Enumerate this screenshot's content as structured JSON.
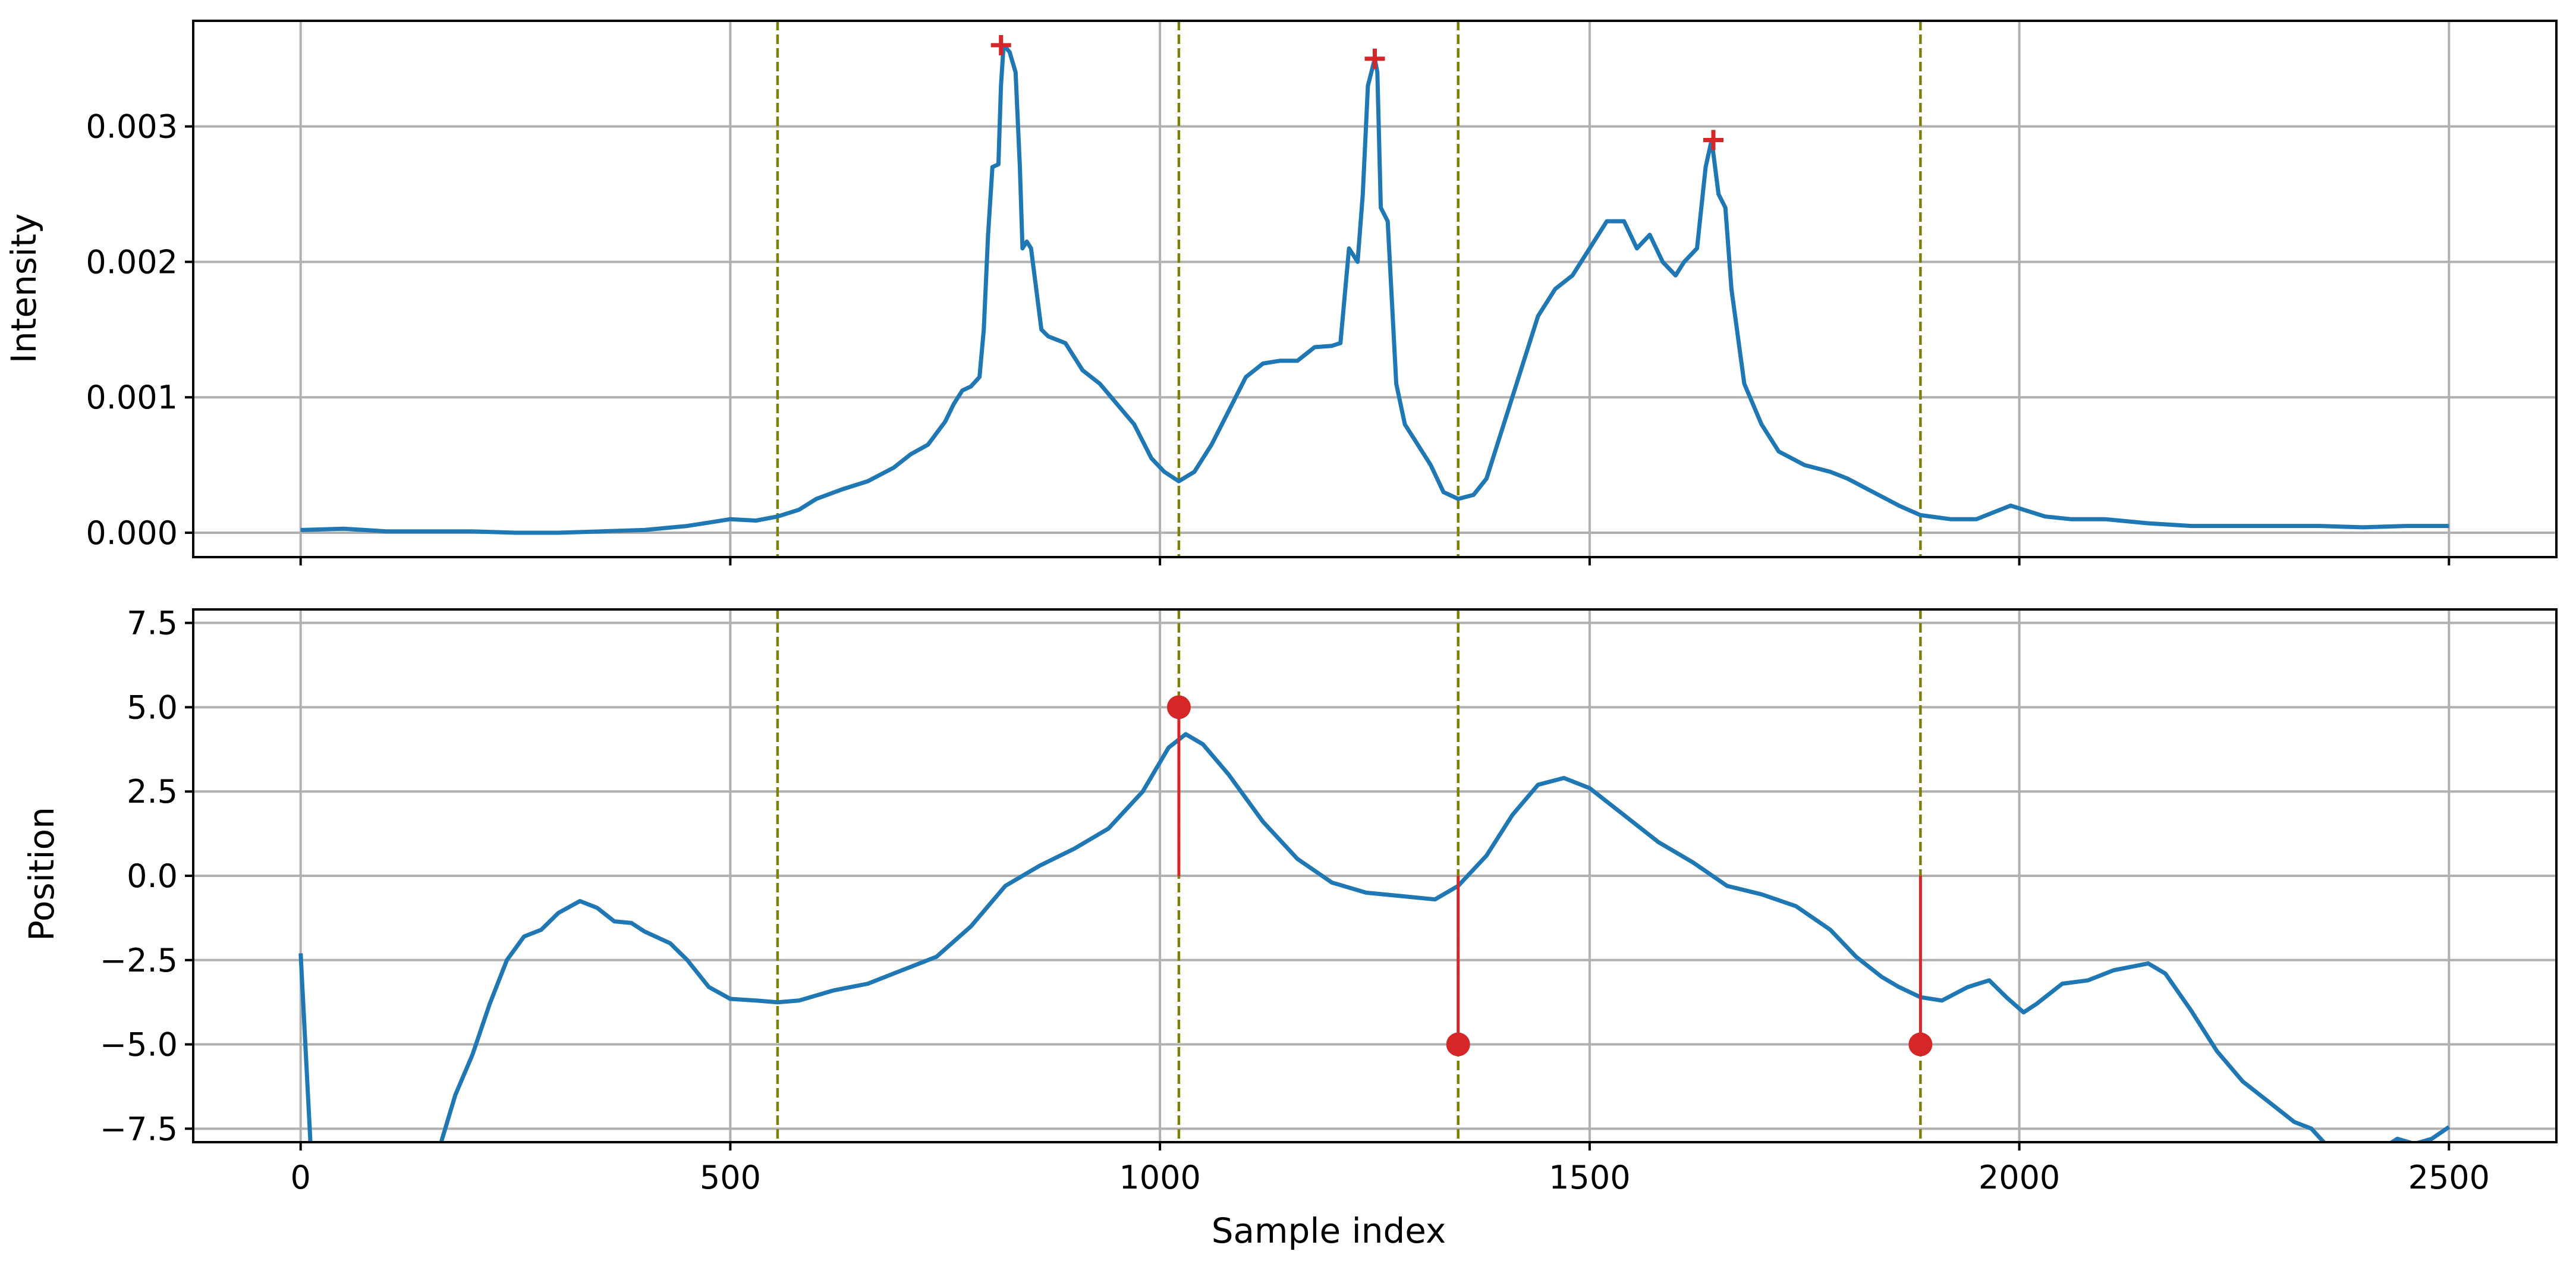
{
  "colors": {
    "series": "#1f77b4",
    "marker": "#d62728",
    "vline": "#808000",
    "grid": "#b0b0b0",
    "axes": "#000000"
  },
  "chart_data": [
    {
      "type": "line",
      "panel": "top",
      "ylabel": "Intensity",
      "xlabel": "",
      "xlim": [
        -125,
        2625
      ],
      "ylim": [
        -0.00018,
        0.00378
      ],
      "x_ticks": [
        0,
        500,
        1000,
        1500,
        2000,
        2500
      ],
      "x_tick_labels_visible": false,
      "y_ticks": [
        0.0,
        0.001,
        0.002,
        0.003
      ],
      "y_tick_labels": [
        "0.000",
        "0.001",
        "0.002",
        "0.003"
      ],
      "grid": true,
      "vertical_lines": [
        555,
        1022,
        1347,
        1885
      ],
      "series": [
        {
          "points": [
            [
              0,
              2e-05
            ],
            [
              50,
              3e-05
            ],
            [
              100,
              1e-05
            ],
            [
              150,
              1e-05
            ],
            [
              200,
              1e-05
            ],
            [
              250,
              0.0
            ],
            [
              300,
              0.0
            ],
            [
              350,
              1e-05
            ],
            [
              400,
              2e-05
            ],
            [
              450,
              5e-05
            ],
            [
              480,
              8e-05
            ],
            [
              500,
              0.0001
            ],
            [
              530,
              9e-05
            ],
            [
              555,
              0.00012
            ],
            [
              580,
              0.00017
            ],
            [
              600,
              0.00025
            ],
            [
              630,
              0.00032
            ],
            [
              660,
              0.00038
            ],
            [
              690,
              0.00048
            ],
            [
              710,
              0.00058
            ],
            [
              730,
              0.00065
            ],
            [
              750,
              0.00082
            ],
            [
              760,
              0.00095
            ],
            [
              770,
              0.00105
            ],
            [
              780,
              0.00108
            ],
            [
              790,
              0.00115
            ],
            [
              795,
              0.0015
            ],
            [
              800,
              0.0022
            ],
            [
              805,
              0.0027
            ],
            [
              812,
              0.00272
            ],
            [
              815,
              0.0033
            ],
            [
              818,
              0.0036
            ],
            [
              825,
              0.00355
            ],
            [
              832,
              0.0034
            ],
            [
              837,
              0.0027
            ],
            [
              840,
              0.0021
            ],
            [
              845,
              0.00215
            ],
            [
              850,
              0.0021
            ],
            [
              858,
              0.0017
            ],
            [
              862,
              0.0015
            ],
            [
              870,
              0.00145
            ],
            [
              890,
              0.0014
            ],
            [
              910,
              0.0012
            ],
            [
              930,
              0.0011
            ],
            [
              950,
              0.00095
            ],
            [
              970,
              0.0008
            ],
            [
              990,
              0.00055
            ],
            [
              1005,
              0.00045
            ],
            [
              1022,
              0.00038
            ],
            [
              1040,
              0.00045
            ],
            [
              1060,
              0.00065
            ],
            [
              1080,
              0.0009
            ],
            [
              1100,
              0.00115
            ],
            [
              1120,
              0.00125
            ],
            [
              1140,
              0.00127
            ],
            [
              1160,
              0.00127
            ],
            [
              1180,
              0.00137
            ],
            [
              1200,
              0.00138
            ],
            [
              1210,
              0.0014
            ],
            [
              1220,
              0.0021
            ],
            [
              1230,
              0.002
            ],
            [
              1236,
              0.0025
            ],
            [
              1242,
              0.0033
            ],
            [
              1250,
              0.0035
            ],
            [
              1253,
              0.0034
            ],
            [
              1257,
              0.0024
            ],
            [
              1265,
              0.0023
            ],
            [
              1270,
              0.0017
            ],
            [
              1275,
              0.0011
            ],
            [
              1285,
              0.0008
            ],
            [
              1300,
              0.00065
            ],
            [
              1315,
              0.0005
            ],
            [
              1330,
              0.0003
            ],
            [
              1347,
              0.00025
            ],
            [
              1365,
              0.00028
            ],
            [
              1380,
              0.0004
            ],
            [
              1400,
              0.0008
            ],
            [
              1420,
              0.0012
            ],
            [
              1440,
              0.0016
            ],
            [
              1460,
              0.0018
            ],
            [
              1480,
              0.0019
            ],
            [
              1500,
              0.0021
            ],
            [
              1520,
              0.0023
            ],
            [
              1540,
              0.0023
            ],
            [
              1555,
              0.0021
            ],
            [
              1570,
              0.0022
            ],
            [
              1585,
              0.002
            ],
            [
              1600,
              0.0019
            ],
            [
              1610,
              0.002
            ],
            [
              1625,
              0.0021
            ],
            [
              1635,
              0.0027
            ],
            [
              1642,
              0.0029
            ],
            [
              1650,
              0.0025
            ],
            [
              1658,
              0.0024
            ],
            [
              1665,
              0.0018
            ],
            [
              1680,
              0.0011
            ],
            [
              1700,
              0.0008
            ],
            [
              1720,
              0.0006
            ],
            [
              1750,
              0.0005
            ],
            [
              1780,
              0.00045
            ],
            [
              1800,
              0.0004
            ],
            [
              1830,
              0.0003
            ],
            [
              1860,
              0.0002
            ],
            [
              1885,
              0.00013
            ],
            [
              1920,
              0.0001
            ],
            [
              1950,
              0.0001
            ],
            [
              1970,
              0.00015
            ],
            [
              1990,
              0.0002
            ],
            [
              2010,
              0.00016
            ],
            [
              2030,
              0.00012
            ],
            [
              2060,
              0.0001
            ],
            [
              2100,
              0.0001
            ],
            [
              2150,
              7e-05
            ],
            [
              2200,
              5e-05
            ],
            [
              2250,
              5e-05
            ],
            [
              2300,
              5e-05
            ],
            [
              2350,
              5e-05
            ],
            [
              2400,
              4e-05
            ],
            [
              2450,
              5e-05
            ],
            [
              2500,
              5e-05
            ]
          ]
        }
      ],
      "markers": [
        {
          "shape": "plus",
          "x": 815,
          "y": 0.0036
        },
        {
          "shape": "plus",
          "x": 1250,
          "y": 0.0035
        },
        {
          "shape": "plus",
          "x": 1644,
          "y": 0.0029
        }
      ]
    },
    {
      "type": "line",
      "panel": "bottom",
      "xlabel": "Sample index",
      "ylabel": "Position",
      "xlim": [
        -125,
        2625
      ],
      "ylim": [
        -7.9,
        7.9
      ],
      "x_ticks": [
        0,
        500,
        1000,
        1500,
        2000,
        2500
      ],
      "x_tick_labels": [
        "0",
        "500",
        "1000",
        "1500",
        "2000",
        "2500"
      ],
      "y_ticks": [
        -7.5,
        -5.0,
        -2.5,
        0.0,
        2.5,
        5.0,
        7.5
      ],
      "y_tick_labels": [
        "−7.5",
        "−5.0",
        "−2.5",
        "0.0",
        "2.5",
        "5.0",
        "7.5"
      ],
      "grid": true,
      "vertical_lines": [
        555,
        1022,
        1347,
        1885
      ],
      "series": [
        {
          "segments": [
            [
              [
                0,
                -2.3
              ],
              [
                12,
                -8.2
              ]
            ],
            [
              [
                160,
                -8.2
              ],
              [
                180,
                -6.5
              ],
              [
                200,
                -5.3
              ],
              [
                220,
                -3.8
              ],
              [
                240,
                -2.5
              ],
              [
                260,
                -1.8
              ],
              [
                280,
                -1.6
              ],
              [
                300,
                -1.1
              ],
              [
                325,
                -0.75
              ],
              [
                345,
                -0.95
              ],
              [
                365,
                -1.35
              ],
              [
                385,
                -1.4
              ],
              [
                400,
                -1.65
              ],
              [
                430,
                -2.0
              ],
              [
                450,
                -2.5
              ],
              [
                475,
                -3.3
              ],
              [
                500,
                -3.65
              ],
              [
                530,
                -3.7
              ],
              [
                555,
                -3.75
              ],
              [
                580,
                -3.7
              ],
              [
                620,
                -3.4
              ],
              [
                660,
                -3.2
              ],
              [
                700,
                -2.8
              ],
              [
                740,
                -2.4
              ],
              [
                780,
                -1.5
              ],
              [
                820,
                -0.3
              ],
              [
                860,
                0.3
              ],
              [
                900,
                0.8
              ],
              [
                940,
                1.4
              ],
              [
                980,
                2.5
              ],
              [
                1010,
                3.8
              ],
              [
                1030,
                4.2
              ],
              [
                1050,
                3.9
              ],
              [
                1080,
                3.0
              ],
              [
                1120,
                1.6
              ],
              [
                1160,
                0.5
              ],
              [
                1200,
                -0.2
              ],
              [
                1240,
                -0.5
              ],
              [
                1280,
                -0.6
              ],
              [
                1320,
                -0.7
              ],
              [
                1347,
                -0.3
              ],
              [
                1380,
                0.6
              ],
              [
                1410,
                1.8
              ],
              [
                1440,
                2.7
              ],
              [
                1470,
                2.9
              ],
              [
                1500,
                2.6
              ],
              [
                1540,
                1.8
              ],
              [
                1580,
                1.0
              ],
              [
                1620,
                0.4
              ],
              [
                1660,
                -0.3
              ],
              [
                1700,
                -0.55
              ],
              [
                1740,
                -0.9
              ],
              [
                1780,
                -1.6
              ],
              [
                1810,
                -2.4
              ],
              [
                1840,
                -3.0
              ],
              [
                1860,
                -3.3
              ],
              [
                1885,
                -3.6
              ],
              [
                1910,
                -3.7
              ],
              [
                1940,
                -3.3
              ],
              [
                1965,
                -3.1
              ],
              [
                1985,
                -3.6
              ],
              [
                2005,
                -4.05
              ],
              [
                2020,
                -3.8
              ],
              [
                2050,
                -3.2
              ],
              [
                2080,
                -3.1
              ],
              [
                2110,
                -2.8
              ],
              [
                2150,
                -2.6
              ],
              [
                2170,
                -2.9
              ],
              [
                2200,
                -4.0
              ],
              [
                2230,
                -5.2
              ],
              [
                2260,
                -6.1
              ],
              [
                2290,
                -6.7
              ],
              [
                2320,
                -7.3
              ],
              [
                2340,
                -7.5
              ],
              [
                2365,
                -8.2
              ]
            ],
            [
              [
                2415,
                -8.2
              ],
              [
                2440,
                -7.8
              ],
              [
                2460,
                -7.95
              ],
              [
                2480,
                -7.8
              ],
              [
                2500,
                -7.45
              ]
            ]
          ]
        }
      ],
      "stems": [
        {
          "x": 1022,
          "y": 5.0
        },
        {
          "x": 1347,
          "y": -5.0
        },
        {
          "x": 1885,
          "y": -5.0
        }
      ]
    }
  ]
}
